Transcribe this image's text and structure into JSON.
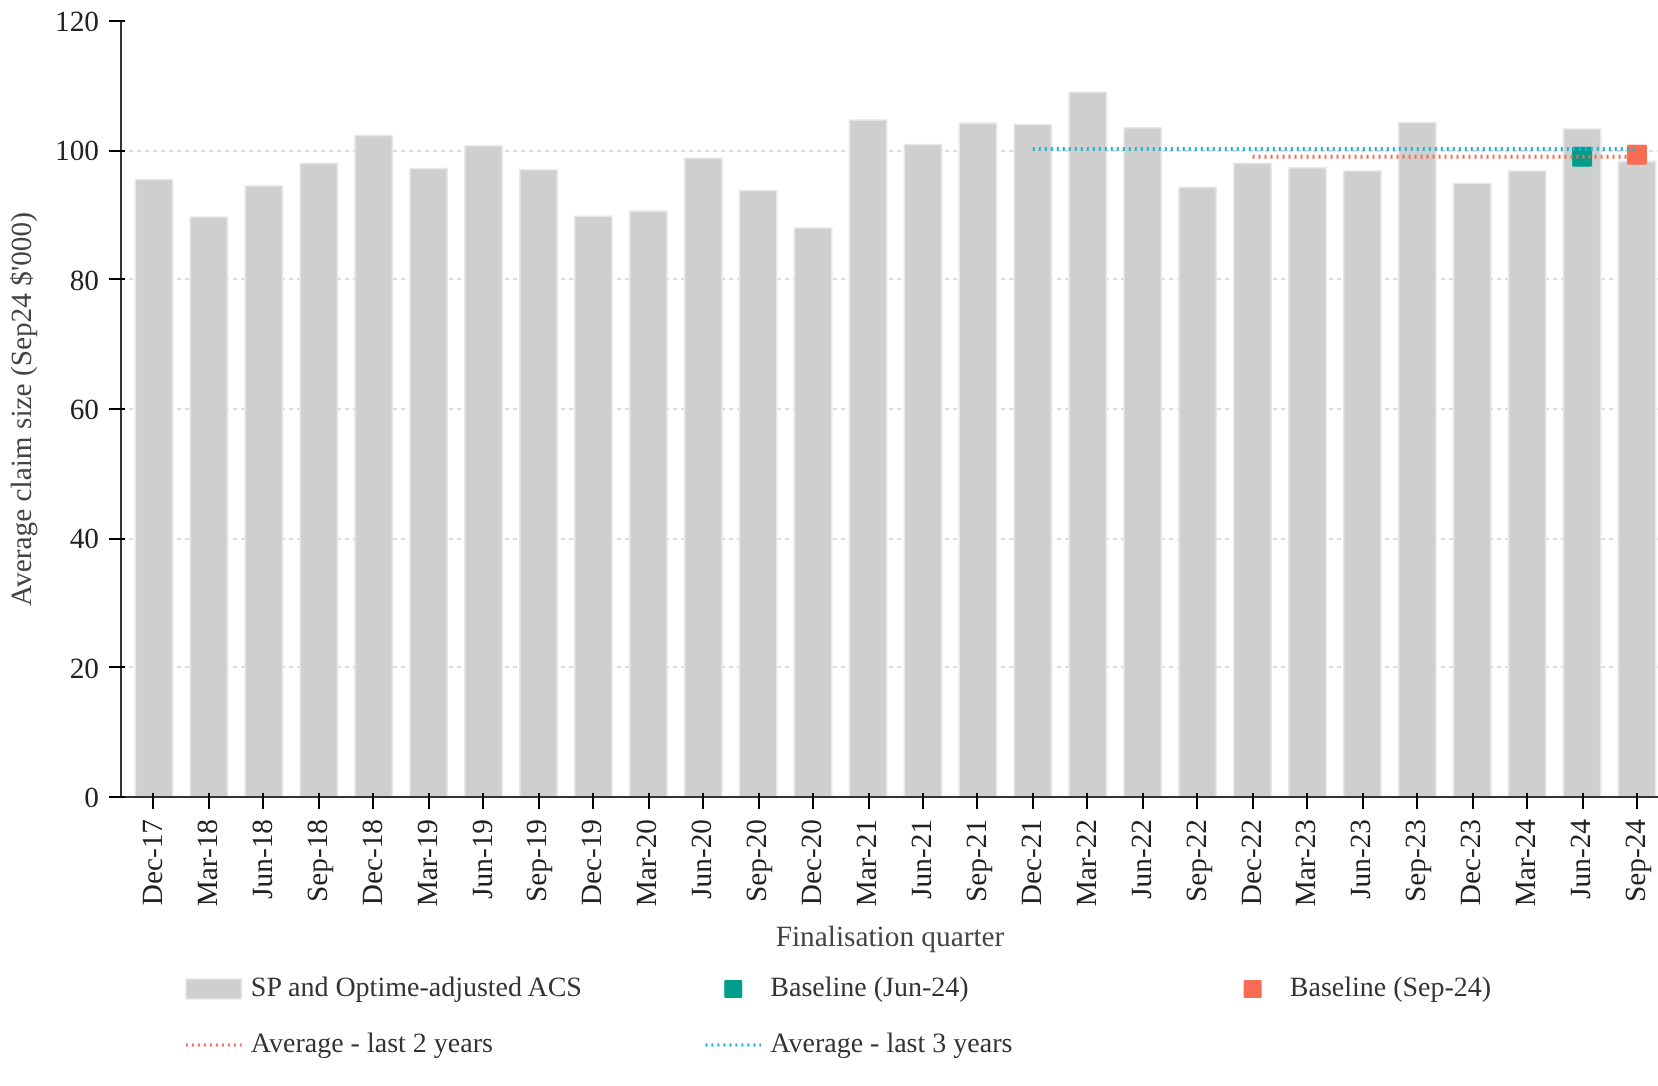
{
  "chart_data": {
    "type": "bar",
    "xlabel": "Finalisation quarter",
    "ylabel": "Average claim size (Sep24 $'000)",
    "categories": [
      "Dec-17",
      "Mar-18",
      "Jun-18",
      "Sep-18",
      "Dec-18",
      "Mar-19",
      "Jun-19",
      "Sep-19",
      "Dec-19",
      "Mar-20",
      "Jun-20",
      "Sep-20",
      "Dec-20",
      "Mar-21",
      "Jun-21",
      "Sep-21",
      "Dec-21",
      "Mar-22",
      "Jun-22",
      "Sep-22",
      "Dec-22",
      "Mar-23",
      "Jun-23",
      "Sep-23",
      "Dec-23",
      "Mar-24",
      "Jun-24",
      "Sep-24"
    ],
    "series": [
      {
        "name": "SP and Optime-adjusted ACS",
        "color": "#d0cfcf",
        "values": [
          95.5,
          89.7,
          94.5,
          98,
          102.3,
          97.2,
          100.7,
          97,
          89.8,
          90.6,
          98.8,
          93.8,
          88,
          104.7,
          100.9,
          104.2,
          104,
          109,
          103.5,
          94.3,
          98,
          97.3,
          96.8,
          104.3,
          94.9,
          96.8,
          103.3,
          98.3
        ]
      },
      {
        "name": "Baseline (Jun-24)",
        "type": "scatter",
        "marker": "square",
        "color": "#009e8a",
        "x": [
          "Jun-24"
        ],
        "values": [
          99.0
        ]
      },
      {
        "name": "Baseline (Sep-24)",
        "type": "scatter",
        "marker": "square",
        "color": "#f86c54",
        "x": [
          "Sep-24"
        ],
        "values": [
          99.3
        ]
      },
      {
        "name": "Average - last 2 years",
        "type": "line",
        "line_style": "dotted",
        "color": "#f86c54",
        "x": [
          "Dec-22",
          "Sep-24"
        ],
        "values": [
          99.0,
          99.0
        ]
      },
      {
        "name": "Average - last 3 years",
        "type": "line",
        "line_style": "dotted",
        "color": "#17b6d8",
        "x": [
          "Dec-21",
          "Sep-24"
        ],
        "values": [
          100.2,
          100.2
        ]
      }
    ],
    "ylim": [
      0,
      120
    ],
    "yticks": [
      0,
      20,
      40,
      60,
      80,
      100,
      120
    ],
    "grid": "y",
    "legend": "bottom"
  }
}
